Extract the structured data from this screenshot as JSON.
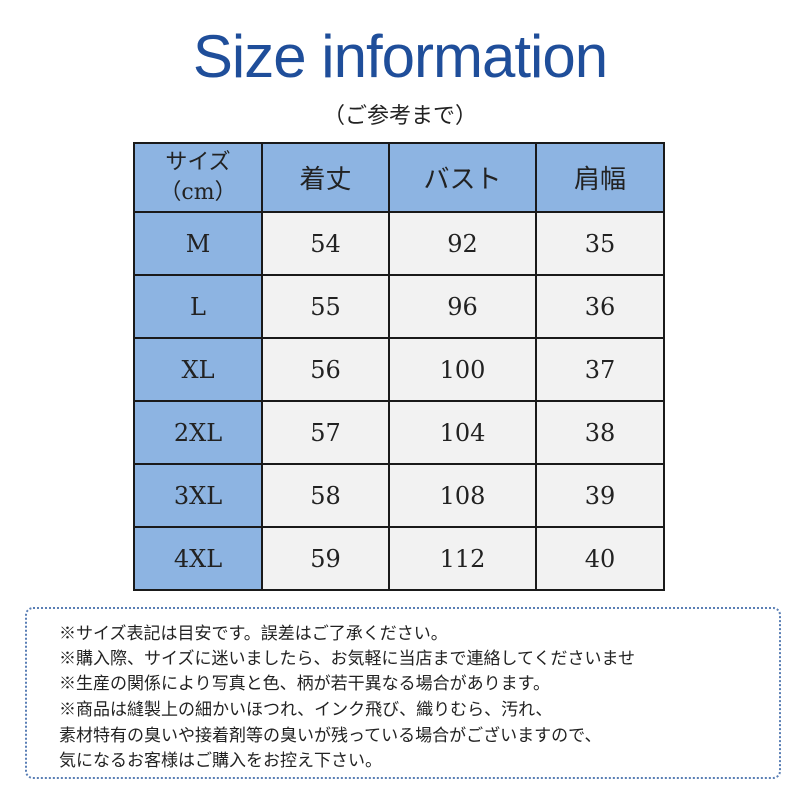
{
  "title": "Size information",
  "subtitle": "（ご参考まで）",
  "colors": {
    "title": "#1f4e9a",
    "header_bg": "#8db4e2",
    "cell_bg": "#f2f2f2"
  },
  "table": {
    "headers": [
      "サイズ（cm）",
      "着丈",
      "バスト",
      "肩幅"
    ],
    "header_size_line1": "サイズ",
    "header_size_line2": "（cm）",
    "rows": [
      [
        "M",
        "54",
        "92",
        "35"
      ],
      [
        "L",
        "55",
        "96",
        "36"
      ],
      [
        "XL",
        "56",
        "100",
        "37"
      ],
      [
        "2XL",
        "57",
        "104",
        "38"
      ],
      [
        "3XL",
        "58",
        "108",
        "39"
      ],
      [
        "4XL",
        "59",
        "112",
        "40"
      ]
    ]
  },
  "notes": [
    "※サイズ表記は目安です。誤差はご了承ください。",
    "※購入際、サイズに迷いましたら、お気軽に当店まで連絡してくださいませ",
    "※生産の関係により写真と色、柄が若干異なる場合があります。",
    "※商品は縫製上の細かいほつれ、インク飛び、織りむら、汚れ、",
    "素材特有の臭いや接着剤等の臭いが残っている場合がございますので、",
    "気になるお客様はご購入をお控え下さい。"
  ]
}
